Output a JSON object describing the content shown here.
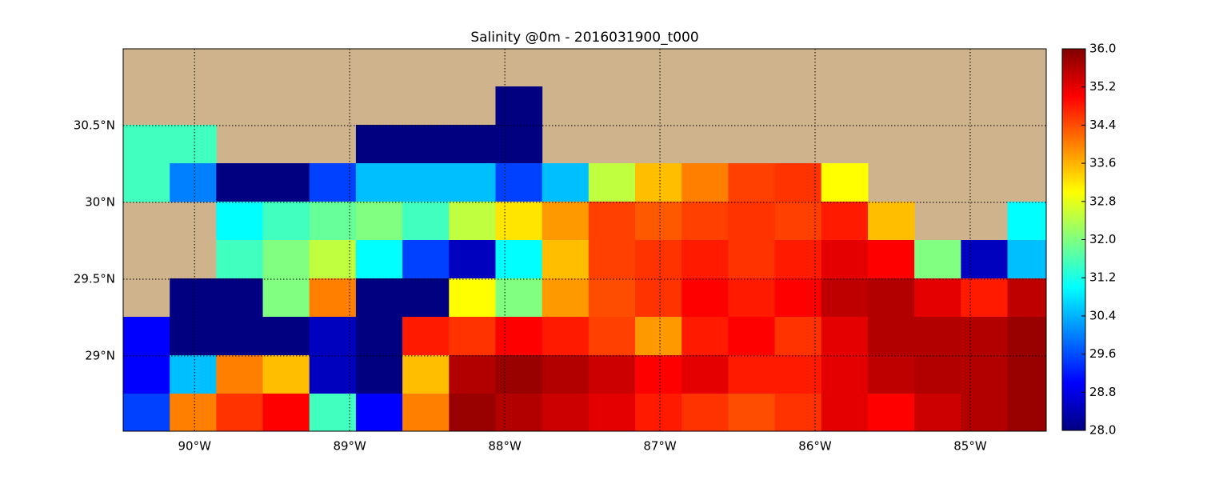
{
  "chart_data": {
    "type": "heatmap",
    "title": "Salinity @0m - 2016031900_t000",
    "colormap": "jet",
    "clim": [
      28,
      36
    ],
    "grid": true,
    "land_color": "#cfb38c",
    "xlim": [
      -90.46,
      -84.51
    ],
    "ylim": [
      28.51,
      31.0
    ],
    "xticks": [
      {
        "value": -90,
        "label": "90°W"
      },
      {
        "value": -89,
        "label": "89°W"
      },
      {
        "value": -88,
        "label": "88°W"
      },
      {
        "value": -87,
        "label": "87°W"
      },
      {
        "value": -86,
        "label": "86°W"
      },
      {
        "value": -85,
        "label": "85°W"
      }
    ],
    "yticks": [
      {
        "value": 29,
        "label": "29°N"
      },
      {
        "value": 29.5,
        "label": "29.5°N"
      },
      {
        "value": 30,
        "label": "30°N"
      },
      {
        "value": 30.5,
        "label": "30.5°N"
      }
    ],
    "cticks": [
      {
        "value": 28,
        "label": "28.0"
      },
      28.8,
      29.6,
      30.4,
      31.2,
      {
        "value": 32,
        "label": "32.0"
      },
      32.8,
      33.6,
      34.4,
      35.2,
      {
        "value": 36,
        "label": "36.0"
      }
    ],
    "x": [
      -90.31,
      -90.01,
      -89.71,
      -89.41,
      -89.11,
      -88.81,
      -88.51,
      -88.21,
      -87.91,
      -87.61,
      -87.31,
      -87.01,
      -86.71,
      -86.41,
      -86.11,
      -85.81,
      -85.51,
      -85.21,
      -84.91,
      -84.61
    ],
    "y": [
      30.88,
      30.63,
      30.38,
      30.13,
      29.88,
      29.63,
      29.38,
      29.13,
      28.88,
      28.63
    ],
    "values": [
      [
        null,
        null,
        null,
        null,
        null,
        null,
        null,
        null,
        null,
        null,
        null,
        null,
        null,
        null,
        null,
        null,
        null,
        null,
        null,
        null
      ],
      [
        null,
        null,
        null,
        null,
        null,
        null,
        null,
        null,
        28,
        null,
        null,
        null,
        null,
        null,
        null,
        null,
        null,
        null,
        null,
        null
      ],
      [
        31.5,
        31.5,
        null,
        null,
        null,
        28,
        28,
        28,
        28,
        null,
        null,
        null,
        null,
        null,
        null,
        null,
        null,
        null,
        null,
        null
      ],
      [
        31.5,
        30,
        28,
        28,
        29.5,
        30.5,
        30.5,
        30.5,
        29.5,
        30.5,
        32.5,
        33.5,
        34,
        34.5,
        34.6,
        33,
        null,
        null,
        null,
        null
      ],
      [
        null,
        null,
        31,
        31.5,
        31.8,
        32,
        31.5,
        32.5,
        33.2,
        33.8,
        34.5,
        34.3,
        34.5,
        34.6,
        34.5,
        34.8,
        33.5,
        null,
        null,
        31
      ],
      [
        null,
        null,
        31.5,
        32,
        32.5,
        31,
        29.5,
        28.5,
        31,
        33.5,
        34.5,
        34.6,
        34.8,
        34.6,
        34.8,
        35.2,
        35,
        32,
        28.5,
        30.5
      ],
      [
        null,
        28,
        28,
        32,
        34,
        28,
        28,
        33,
        32,
        33.8,
        34.4,
        34.6,
        35,
        34.8,
        35,
        35.5,
        35.6,
        35.2,
        34.8,
        35.5
      ],
      [
        29,
        28,
        28,
        28,
        28.5,
        28,
        34.8,
        34.6,
        35,
        34.8,
        34.5,
        33.8,
        34.8,
        35,
        34.6,
        35.2,
        35.6,
        35.6,
        35.6,
        35.8
      ],
      [
        29,
        30.5,
        34,
        33.5,
        28.5,
        28,
        33.5,
        35.6,
        35.8,
        35.6,
        35.4,
        35,
        35.2,
        34.8,
        34.8,
        35.2,
        35.5,
        35.6,
        35.6,
        35.8
      ],
      [
        29.5,
        34,
        34.6,
        35,
        31.5,
        29,
        34,
        35.8,
        35.6,
        35.4,
        35.2,
        34.8,
        34.6,
        34.4,
        34.6,
        35.2,
        35,
        35.4,
        35.6,
        35.8
      ]
    ]
  }
}
